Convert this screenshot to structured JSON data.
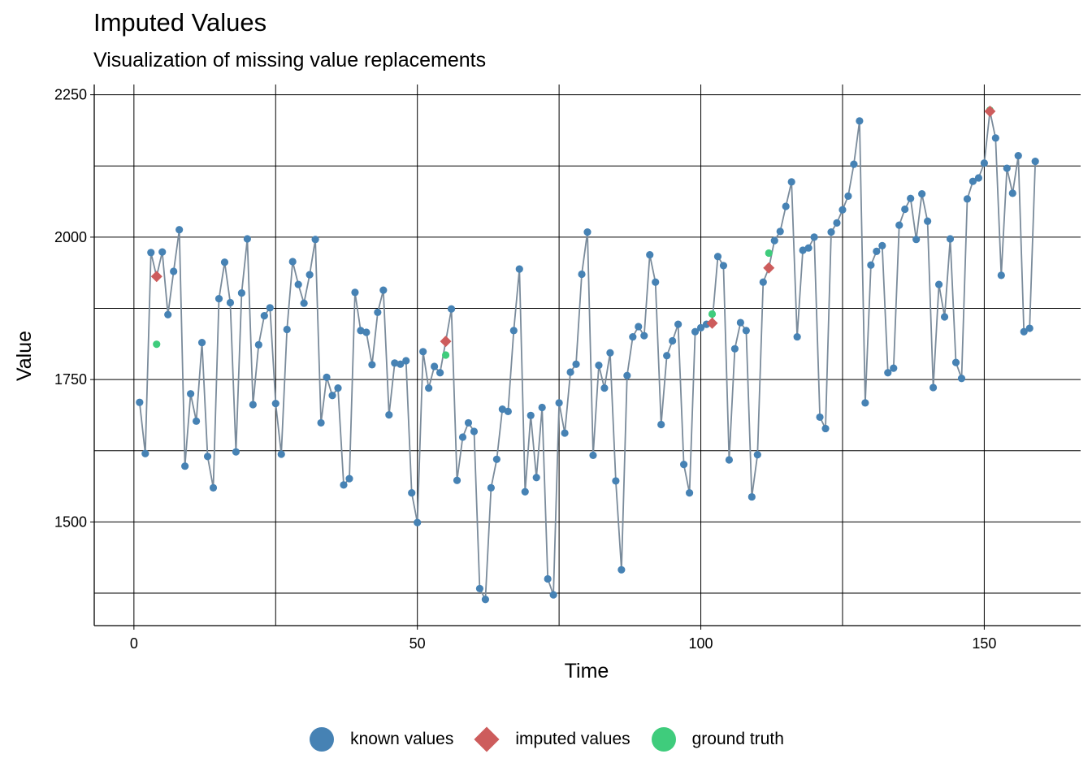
{
  "chart_data": {
    "type": "scatter",
    "title": "Imputed Values",
    "subtitle": "Visualization of missing value replacements",
    "xlabel": "Time",
    "ylabel": "Value",
    "xlim": [
      -7,
      167
    ],
    "ylim": [
      1318,
      2268
    ],
    "x_ticks": [
      0,
      50,
      100,
      150
    ],
    "y_ticks": [
      1500,
      1750,
      2000,
      2250
    ],
    "x_minor_grid": [
      25,
      75,
      125
    ],
    "y_minor_grid": [
      1375,
      1625,
      1875,
      2125
    ],
    "grid": true,
    "legend_position": "bottom",
    "series": [
      {
        "name": "known values",
        "color": "#4682B4",
        "x": [
          1,
          2,
          3,
          5,
          6,
          7,
          8,
          9,
          10,
          11,
          12,
          13,
          14,
          15,
          16,
          17,
          18,
          19,
          20,
          21,
          22,
          23,
          24,
          25,
          26,
          27,
          28,
          29,
          30,
          31,
          32,
          33,
          34,
          35,
          36,
          37,
          38,
          39,
          40,
          41,
          42,
          43,
          44,
          45,
          46,
          47,
          48,
          49,
          50,
          51,
          52,
          53,
          54,
          56,
          57,
          58,
          59,
          60,
          61,
          62,
          63,
          64,
          65,
          66,
          67,
          68,
          69,
          70,
          71,
          72,
          73,
          74,
          75,
          76,
          77,
          78,
          79,
          80,
          81,
          82,
          83,
          84,
          85,
          86,
          87,
          88,
          89,
          90,
          91,
          92,
          93,
          94,
          95,
          96,
          97,
          98,
          99,
          100,
          101,
          103,
          104,
          105,
          106,
          107,
          108,
          109,
          110,
          111,
          113,
          114,
          115,
          116,
          117,
          118,
          119,
          120,
          121,
          122,
          123,
          124,
          125,
          126,
          127,
          128,
          129,
          130,
          131,
          132,
          133,
          134,
          135,
          136,
          137,
          138,
          139,
          140,
          141,
          142,
          143,
          144,
          145,
          146,
          147,
          148,
          149,
          150,
          152,
          153,
          154,
          155,
          156,
          157,
          158,
          159
        ],
        "values": [
          1710,
          1620,
          1973,
          1974,
          1864,
          1940,
          2013,
          1598,
          1725,
          1677,
          1815,
          1615,
          1560,
          1892,
          1956,
          1885,
          1623,
          1902,
          1997,
          1706,
          1811,
          1862,
          1876,
          1708,
          1619,
          1838,
          1957,
          1917,
          1884,
          1934,
          1996,
          1674,
          1754,
          1722,
          1735,
          1565,
          1576,
          1903,
          1836,
          1833,
          1776,
          1868,
          1907,
          1688,
          1779,
          1777,
          1783,
          1551,
          1499,
          1799,
          1735,
          1773,
          1762,
          1874,
          1573,
          1649,
          1674,
          1659,
          1383,
          1364,
          1560,
          1610,
          1698,
          1694,
          1836,
          1944,
          1553,
          1687,
          1578,
          1701,
          1400,
          1372,
          1709,
          1656,
          1763,
          1777,
          1935,
          2009,
          1617,
          1775,
          1735,
          1797,
          1572,
          1416,
          1757,
          1825,
          1843,
          1827,
          1969,
          1921,
          1671,
          1792,
          1818,
          1847,
          1601,
          1551,
          1834,
          1841,
          1847,
          1966,
          1950,
          1609,
          1804,
          1850,
          1836,
          1544,
          1618,
          1921,
          1994,
          2010,
          2054,
          2097,
          1825,
          1977,
          1981,
          2000,
          1684,
          1664,
          2009,
          2025,
          2048,
          2072,
          2128,
          2204,
          1709,
          1951,
          1975,
          1985,
          1762,
          1770,
          2021,
          2049,
          2068,
          1996,
          2076,
          2028,
          1736,
          1917,
          1860,
          1997,
          1780,
          1752,
          2067,
          2098,
          2104,
          2130,
          2174,
          1933,
          2121,
          2077,
          2143,
          1834,
          1840,
          2133
        ]
      },
      {
        "name": "imputed values",
        "color": "#CD5C5C",
        "x": [
          4,
          55,
          102,
          112,
          151
        ],
        "values": [
          1931,
          1817,
          1849,
          1946,
          2221
        ]
      },
      {
        "name": "ground truth",
        "color": "#3FCC7C",
        "x": [
          4,
          55,
          102,
          112,
          151
        ],
        "values": [
          1812,
          1793,
          1865,
          1972,
          2223
        ]
      }
    ],
    "line_color": "#7A8B9B"
  },
  "legend": {
    "known": "known values",
    "imputed": "imputed values",
    "truth": "ground truth"
  }
}
